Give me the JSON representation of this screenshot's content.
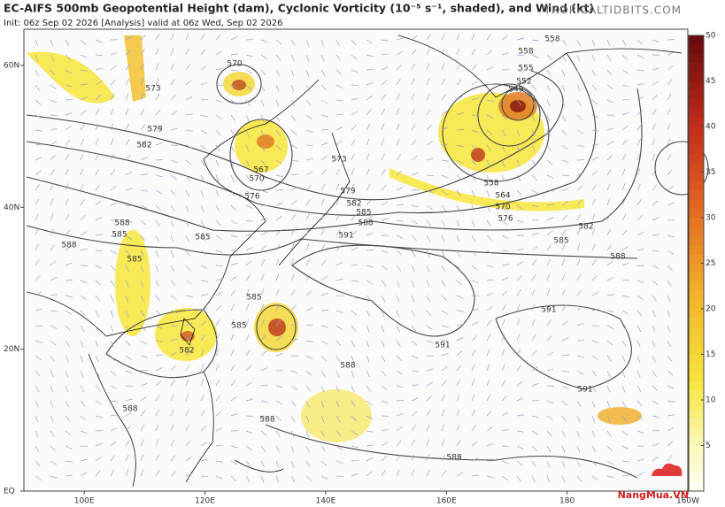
{
  "header": {
    "title": "EC-AIFS 500mb Geopotential Height (dam), Cyclonic Vorticity (10⁻⁵ s⁻¹, shaded), and Wind (kt)",
    "subtitle": "Init: 06z Sep 02 2026   [Analysis]   valid at 06z Wed, Sep 02 2026",
    "site": "TROPICALTIDBITS.COM"
  },
  "map": {
    "lonlim": [
      90,
      200
    ],
    "latlim": [
      0,
      65.1
    ],
    "lonticks": [
      {
        "value": 100,
        "label": "100E"
      },
      {
        "value": 120,
        "label": "120E"
      },
      {
        "value": 140,
        "label": "140E"
      },
      {
        "value": 160,
        "label": "160E"
      },
      {
        "value": 180,
        "label": "180"
      },
      {
        "value": 200,
        "label": "160W"
      }
    ],
    "latticks": [
      {
        "value": 0,
        "label": "EQ"
      },
      {
        "value": 20,
        "label": "20N"
      },
      {
        "value": 40,
        "label": "40N"
      },
      {
        "value": 60,
        "label": "60N"
      }
    ],
    "contour_labels": [
      "570",
      "573",
      "579",
      "582",
      "567",
      "570",
      "573",
      "576",
      "579",
      "582",
      "585",
      "588",
      "591",
      "585",
      "588",
      "585",
      "585",
      "588",
      "585",
      "585",
      "582",
      "588",
      "588",
      "588",
      "591",
      "591",
      "591",
      "588",
      "588",
      "585",
      "582",
      "576",
      "570",
      "564",
      "558",
      "558",
      "555",
      "552",
      "549",
      "558"
    ]
  },
  "colorbar": {
    "lim": [
      0,
      50
    ],
    "ticks": [
      5,
      10,
      15,
      20,
      25,
      30,
      35,
      40,
      45,
      50
    ]
  },
  "watermark": "NangMua.VN"
}
